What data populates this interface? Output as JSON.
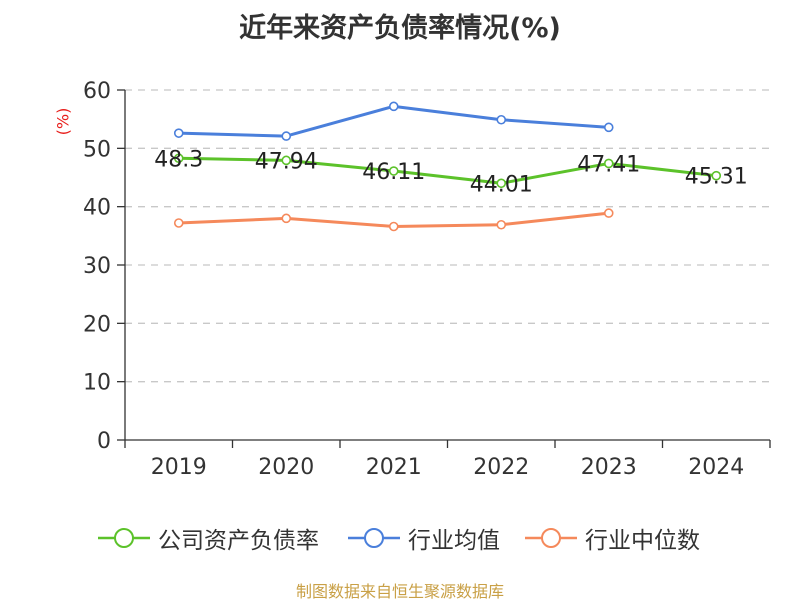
{
  "title": "近年来资产负债率情况(%)",
  "y_unit": "(%)",
  "source": "制图数据来自恒生聚源数据库",
  "colors": {
    "company": "#5cc22a",
    "industry_avg": "#4a7fdb",
    "industry_median": "#f5895b",
    "axis": "#333333",
    "grid": "#c8c8c8",
    "unit": "#e8201d",
    "source": "#c9a046"
  },
  "chart_data": {
    "type": "line",
    "title": "近年来资产负债率情况(%)",
    "xlabel": "",
    "ylabel": "(%)",
    "categories": [
      "2019",
      "2020",
      "2021",
      "2022",
      "2023",
      "2024"
    ],
    "ylim": [
      0,
      60
    ],
    "yticks": [
      0,
      10,
      20,
      30,
      40,
      50,
      60
    ],
    "grid": true,
    "legend_position": "bottom",
    "series": [
      {
        "name": "公司资产负债率",
        "values": [
          48.3,
          47.94,
          46.11,
          44.01,
          47.41,
          45.31
        ],
        "data_labels": [
          "48.3",
          "47.94",
          "46.11",
          "44.01",
          "47.41",
          "45.31"
        ]
      },
      {
        "name": "行业均值",
        "values": [
          52.6,
          52.1,
          57.2,
          54.9,
          53.6,
          null
        ]
      },
      {
        "name": "行业中位数",
        "values": [
          37.2,
          38.0,
          36.6,
          36.9,
          38.9,
          null
        ]
      }
    ]
  }
}
